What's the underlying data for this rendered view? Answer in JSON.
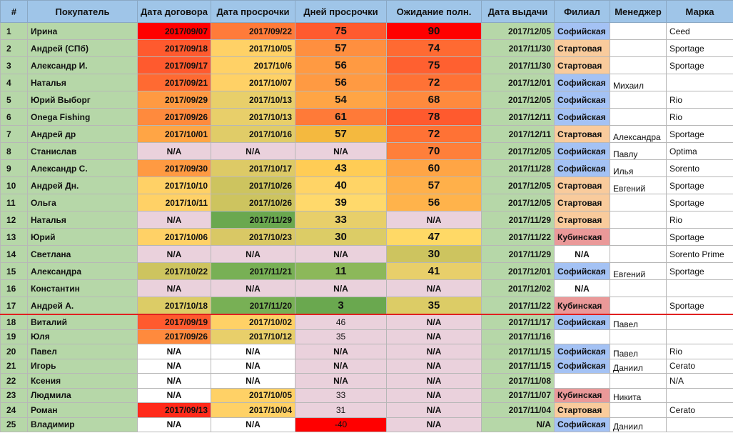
{
  "headers": [
    "#",
    "Покупатель",
    "Дата договора",
    "Дата просрочки",
    "Дней просрочки",
    "Ожидание полн.",
    "Дата выдачи",
    "Филиал",
    "Менеджер",
    "Марка"
  ],
  "colors": {
    "header": "#9fc5e8",
    "green": "#b6d7a8",
    "pink": "#ead1dc",
    "separator": "#e02020",
    "sofia": "#a4c2f4",
    "start": "#f9cb9c",
    "kub": "#ea9999"
  },
  "rows": [
    {
      "num": "1",
      "buyer": "Ирина",
      "contract": "2017/09/07",
      "overdue": "2017/09/22",
      "days": "75",
      "wait": "90",
      "issue": "2017/12/05",
      "branch": "Софийская",
      "manager": "",
      "brand": "Ceed",
      "c_contract": "#ff0000",
      "c_overdue": "#ff7b3a",
      "c_days": "#ff5a2e",
      "c_wait": "#ff0000"
    },
    {
      "num": "2",
      "buyer": "Андрей (СПб)",
      "contract": "2017/09/18",
      "overdue": "2017/10/05",
      "days": "57",
      "wait": "74",
      "issue": "2017/11/30",
      "branch": "Стартовая",
      "manager": "",
      "brand": "Sportage",
      "c_contract": "#ff5a2e",
      "c_overdue": "#ffd166",
      "c_days": "#ff8f3f",
      "c_wait": "#ff6a32"
    },
    {
      "num": "3",
      "buyer": "Александр И.",
      "contract": "2017/09/17",
      "overdue": "2017/10/6",
      "days": "56",
      "wait": "75",
      "issue": "2017/11/30",
      "branch": "Стартовая",
      "manager": "",
      "brand": "Sportage",
      "c_contract": "#ff5a2e",
      "c_overdue": "#ffd166",
      "c_days": "#ff9a42",
      "c_wait": "#ff6030"
    },
    {
      "num": "4",
      "buyer": "Наталья",
      "contract": "2017/09/21",
      "overdue": "2017/10/07",
      "days": "56",
      "wait": "72",
      "issue": "2017/12/01",
      "branch": "Софийская",
      "manager": "Михаил",
      "brand": "",
      "c_contract": "#ff6a32",
      "c_overdue": "#ffd166",
      "c_days": "#ff9a42",
      "c_wait": "#ff7235"
    },
    {
      "num": "5",
      "buyer": "Юрий Выборг",
      "contract": "2017/09/29",
      "overdue": "2017/10/13",
      "days": "54",
      "wait": "68",
      "issue": "2017/12/05",
      "branch": "Софийская",
      "manager": "",
      "brand": "Rio",
      "c_contract": "#ff9a42",
      "c_overdue": "#e8cf6a",
      "c_days": "#ffa545",
      "c_wait": "#ff8a3d"
    },
    {
      "num": "6",
      "buyer": "Onega Fishing",
      "contract": "2017/09/26",
      "overdue": "2017/10/13",
      "days": "61",
      "wait": "78",
      "issue": "2017/12/11",
      "branch": "Софийская",
      "manager": "",
      "brand": "Rio",
      "c_contract": "#ff8a3d",
      "c_overdue": "#e8cf6a",
      "c_days": "#ff7a38",
      "c_wait": "#ff5a2e"
    },
    {
      "num": "7",
      "buyer": "Андрей др",
      "contract": "2017/10/01",
      "overdue": "2017/10/16",
      "days": "57",
      "wait": "72",
      "issue": "2017/12/11",
      "branch": "Стартовая",
      "manager": "Александра",
      "brand": "Sportage",
      "c_contract": "#ffa545",
      "c_overdue": "#e0cc68",
      "c_days": "#f4b93f",
      "c_wait": "#ff7235"
    },
    {
      "num": "8",
      "buyer": "Станислав",
      "contract": "N/A",
      "overdue": "N/A",
      "days": "N/A",
      "wait": "70",
      "issue": "2017/12/05",
      "branch": "Софийская",
      "manager": "Павлу",
      "brand": "Optima",
      "c_contract": "#ead1dc",
      "c_overdue": "#ead1dc",
      "c_days": "#ead1dc",
      "c_wait": "#ff7f3a"
    },
    {
      "num": "9",
      "buyer": "Александр С.",
      "contract": "2017/09/30",
      "overdue": "2017/10/17",
      "days": "43",
      "wait": "60",
      "issue": "2017/11/28",
      "branch": "Софийская",
      "manager": "Илья",
      "brand": "Sorento",
      "c_contract": "#ff9a42",
      "c_overdue": "#ddca66",
      "c_days": "#ffcc55",
      "c_wait": "#ffa545"
    },
    {
      "num": "10",
      "buyer": "Андрей Дн.",
      "contract": "2017/10/10",
      "overdue": "2017/10/26",
      "days": "40",
      "wait": "57",
      "issue": "2017/12/05",
      "branch": "Стартовая",
      "manager": "Евгений",
      "brand": "Sportage",
      "c_contract": "#ffd166",
      "c_overdue": "#cdc45f",
      "c_days": "#ffd466",
      "c_wait": "#ffb04a"
    },
    {
      "num": "11",
      "buyer": "Ольга",
      "contract": "2017/10/11",
      "overdue": "2017/10/26",
      "days": "39",
      "wait": "56",
      "issue": "2017/12/05",
      "branch": "Стартовая",
      "manager": "",
      "brand": "Sportage",
      "c_contract": "#ffd166",
      "c_overdue": "#cdc45f",
      "c_days": "#ffd96b",
      "c_wait": "#ffb34b"
    },
    {
      "num": "12",
      "buyer": "Наталья",
      "contract": "N/A",
      "overdue": "2017/11/29",
      "days": "33",
      "wait": "N/A",
      "issue": "2017/11/29",
      "branch": "Стартовая",
      "manager": "",
      "brand": "Rio",
      "c_contract": "#ead1dc",
      "c_overdue": "#6aa84f",
      "c_days": "#e8cf6a",
      "c_wait": "#ead1dc"
    },
    {
      "num": "13",
      "buyer": "Юрий",
      "contract": "2017/10/06",
      "overdue": "2017/10/23",
      "days": "30",
      "wait": "47",
      "issue": "2017/11/22",
      "branch": "Кубинская",
      "manager": "",
      "brand": "Sportage",
      "c_contract": "#ffd166",
      "c_overdue": "#d9c865",
      "c_days": "#dccc66",
      "c_wait": "#ffd966"
    },
    {
      "num": "14",
      "buyer": "Светлана",
      "contract": "N/A",
      "overdue": "N/A",
      "days": "N/A",
      "wait": "30",
      "issue": "2017/11/29",
      "branch": "N/A",
      "manager": "",
      "brand": "Sorento Prime",
      "c_contract": "#ead1dc",
      "c_overdue": "#ead1dc",
      "c_days": "#ead1dc",
      "c_wait": "#cdc45f"
    },
    {
      "num": "15",
      "buyer": "Александра",
      "contract": "2017/10/22",
      "overdue": "2017/11/21",
      "days": "11",
      "wait": "41",
      "issue": "2017/12/01",
      "branch": "Софийская",
      "manager": "Евгений",
      "brand": "Sportage",
      "c_contract": "#cdc45f",
      "c_overdue": "#78b055",
      "c_days": "#8cb85a",
      "c_wait": "#e8cf6a"
    },
    {
      "num": "16",
      "buyer": "Константин",
      "contract": "N/A",
      "overdue": "N/A",
      "days": "N/A",
      "wait": "N/A",
      "issue": "2017/12/02",
      "branch": "N/A",
      "manager": "",
      "brand": "",
      "c_contract": "#ead1dc",
      "c_overdue": "#ead1dc",
      "c_days": "#ead1dc",
      "c_wait": "#ead1dc"
    },
    {
      "num": "17",
      "buyer": "Андрей А.",
      "contract": "2017/10/18",
      "overdue": "2017/11/20",
      "days": "3",
      "wait": "35",
      "issue": "2017/11/22",
      "branch": "Кубинская",
      "manager": "",
      "brand": "Sportage",
      "c_contract": "#dccc66",
      "c_overdue": "#78b055",
      "c_days": "#6aa84f",
      "c_wait": "#dccc66"
    },
    {
      "num": "18",
      "buyer": "Виталий",
      "contract": "2017/09/19",
      "overdue": "2017/10/02",
      "days": "46",
      "wait": "N/A",
      "issue": "2017/11/17",
      "branch": "Софийская",
      "manager": "Павел",
      "brand": "",
      "c_contract": "#ff5a2e",
      "c_overdue": "#ffd166",
      "c_days": "#ead1dc",
      "c_wait": "#ead1dc"
    },
    {
      "num": "19",
      "buyer": "Юля",
      "contract": "2017/09/26",
      "overdue": "2017/10/12",
      "days": "35",
      "wait": "N/A",
      "issue": "2017/11/16",
      "branch": "",
      "manager": "",
      "brand": "",
      "c_contract": "#ff8a3d",
      "c_overdue": "#e8cf6a",
      "c_days": "#ead1dc",
      "c_wait": "#ead1dc"
    },
    {
      "num": "20",
      "buyer": "Павел",
      "contract": "N/A",
      "overdue": "N/A",
      "days": "N/A",
      "wait": "N/A",
      "issue": "2017/11/15",
      "branch": "Софийская",
      "manager": "Павел",
      "brand": "Rio",
      "c_contract": "#ffffff",
      "c_overdue": "#ffffff",
      "c_days": "#ead1dc",
      "c_wait": "#ead1dc"
    },
    {
      "num": "21",
      "buyer": "Игорь",
      "contract": "N/A",
      "overdue": "N/A",
      "days": "N/A",
      "wait": "N/A",
      "issue": "2017/11/15",
      "branch": "Софийская",
      "manager": "Даниил",
      "brand": "Cerato",
      "c_contract": "#ffffff",
      "c_overdue": "#ffffff",
      "c_days": "#ead1dc",
      "c_wait": "#ead1dc"
    },
    {
      "num": "22",
      "buyer": "Ксения",
      "contract": "N/A",
      "overdue": "N/A",
      "days": "N/A",
      "wait": "N/A",
      "issue": "2017/11/08",
      "branch": "",
      "manager": "",
      "brand": "N/A",
      "c_contract": "#ffffff",
      "c_overdue": "#ffffff",
      "c_days": "#ead1dc",
      "c_wait": "#ead1dc"
    },
    {
      "num": "23",
      "buyer": "Людмила",
      "contract": "N/A",
      "overdue": "2017/10/05",
      "days": "33",
      "wait": "N/A",
      "issue": "2017/11/07",
      "branch": "Кубинская",
      "manager": "Никита",
      "brand": "",
      "c_contract": "#ffffff",
      "c_overdue": "#ffd166",
      "c_days": "#ead1dc",
      "c_wait": "#ead1dc"
    },
    {
      "num": "24",
      "buyer": "Роман",
      "contract": "2017/09/13",
      "overdue": "2017/10/04",
      "days": "31",
      "wait": "N/A",
      "issue": "2017/11/04",
      "branch": "Стартовая",
      "manager": "",
      "brand": "Cerato",
      "c_contract": "#ff2a1a",
      "c_overdue": "#ffd166",
      "c_days": "#ead1dc",
      "c_wait": "#ead1dc"
    },
    {
      "num": "25",
      "buyer": "Владимир",
      "contract": "N/A",
      "overdue": "N/A",
      "days": "-40",
      "wait": "N/A",
      "issue": "N/A",
      "branch": "Софийская",
      "manager": "Даниил",
      "brand": "",
      "c_contract": "#ffffff",
      "c_overdue": "#ffffff",
      "c_days": "#ff0000",
      "c_wait": "#ead1dc"
    }
  ]
}
